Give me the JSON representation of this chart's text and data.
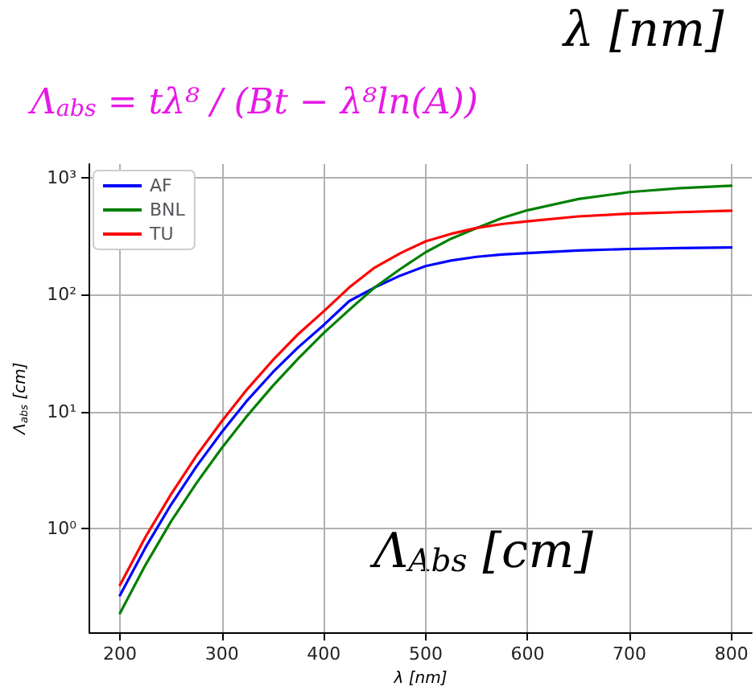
{
  "chart_data": {
    "type": "line",
    "title": "Λ$_{abs}$ = tλ⁸ / (Bt − λ⁸ln(A))",
    "annotations": [
      "λ [nm]",
      "Λ$_{Abs}$ [cm]"
    ],
    "xlabel": "λ [nm]",
    "ylabel": "Λ$_{abs}$ [cm]",
    "x": [
      200,
      225,
      250,
      275,
      300,
      325,
      350,
      375,
      400,
      425,
      450,
      475,
      500,
      525,
      550,
      575,
      600,
      650,
      700,
      750,
      800
    ],
    "series": [
      {
        "name": "AF",
        "color": "#0000ff",
        "values": [
          0.27,
          0.69,
          1.6,
          3.4,
          6.7,
          12.5,
          21.7,
          35.5,
          55,
          88,
          115,
          145,
          175,
          195,
          210,
          220,
          226,
          238,
          245,
          249,
          252
        ]
      },
      {
        "name": "BNL",
        "color": "#008000",
        "values": [
          0.19,
          0.49,
          1.15,
          2.45,
          4.9,
          9.25,
          16.6,
          28.4,
          47,
          74,
          115,
          165,
          230,
          300,
          370,
          450,
          525,
          654,
          750,
          810,
          850
        ]
      },
      {
        "name": "TU",
        "color": "#ff0000",
        "values": [
          0.33,
          0.85,
          1.96,
          4.2,
          8.3,
          15.6,
          27.5,
          46,
          72,
          115,
          170,
          225,
          285,
          330,
          370,
          400,
          422,
          465,
          490,
          505,
          520
        ]
      }
    ],
    "xlim": [
      170,
      820
    ],
    "xticks": [
      200,
      300,
      400,
      500,
      600,
      700,
      800
    ],
    "ylim": [
      0.13,
      1300
    ],
    "yticks": [
      {
        "value": 1,
        "label": "10⁰"
      },
      {
        "value": 10,
        "label": "10¹"
      },
      {
        "value": 100,
        "label": "10²"
      },
      {
        "value": 1000,
        "label": "10³"
      }
    ],
    "log": "y",
    "grid": true,
    "legend": "top left",
    "line_style": "solid",
    "marker": "none"
  }
}
